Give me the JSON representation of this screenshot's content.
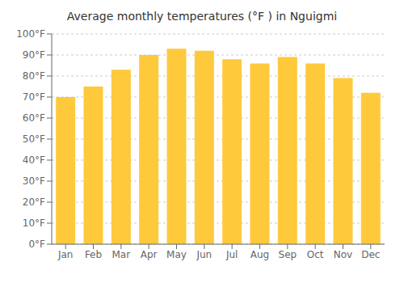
{
  "chart_data": {
    "type": "bar",
    "title": "Average monthly temperatures (°F ) in Nguigmi",
    "categories": [
      "Jan",
      "Feb",
      "Mar",
      "Apr",
      "May",
      "Jun",
      "Jul",
      "Aug",
      "Sep",
      "Oct",
      "Nov",
      "Dec"
    ],
    "values": [
      70,
      75,
      83,
      90,
      93,
      92,
      88,
      86,
      89,
      86,
      79,
      72
    ],
    "color": "#FFC93C",
    "ylim": [
      0,
      100
    ],
    "yticks": [
      {
        "value": 0,
        "label": "0°F"
      },
      {
        "value": 10,
        "label": "10°F"
      },
      {
        "value": 20,
        "label": "20°F"
      },
      {
        "value": 30,
        "label": "30°F"
      },
      {
        "value": 40,
        "label": "40°F"
      },
      {
        "value": 50,
        "label": "50°F"
      },
      {
        "value": 60,
        "label": "60°F"
      },
      {
        "value": 70,
        "label": "70°F"
      },
      {
        "value": 80,
        "label": "80°F"
      },
      {
        "value": 90,
        "label": "90°F"
      },
      {
        "value": 100,
        "label": "100°F"
      }
    ],
    "grid": true
  }
}
